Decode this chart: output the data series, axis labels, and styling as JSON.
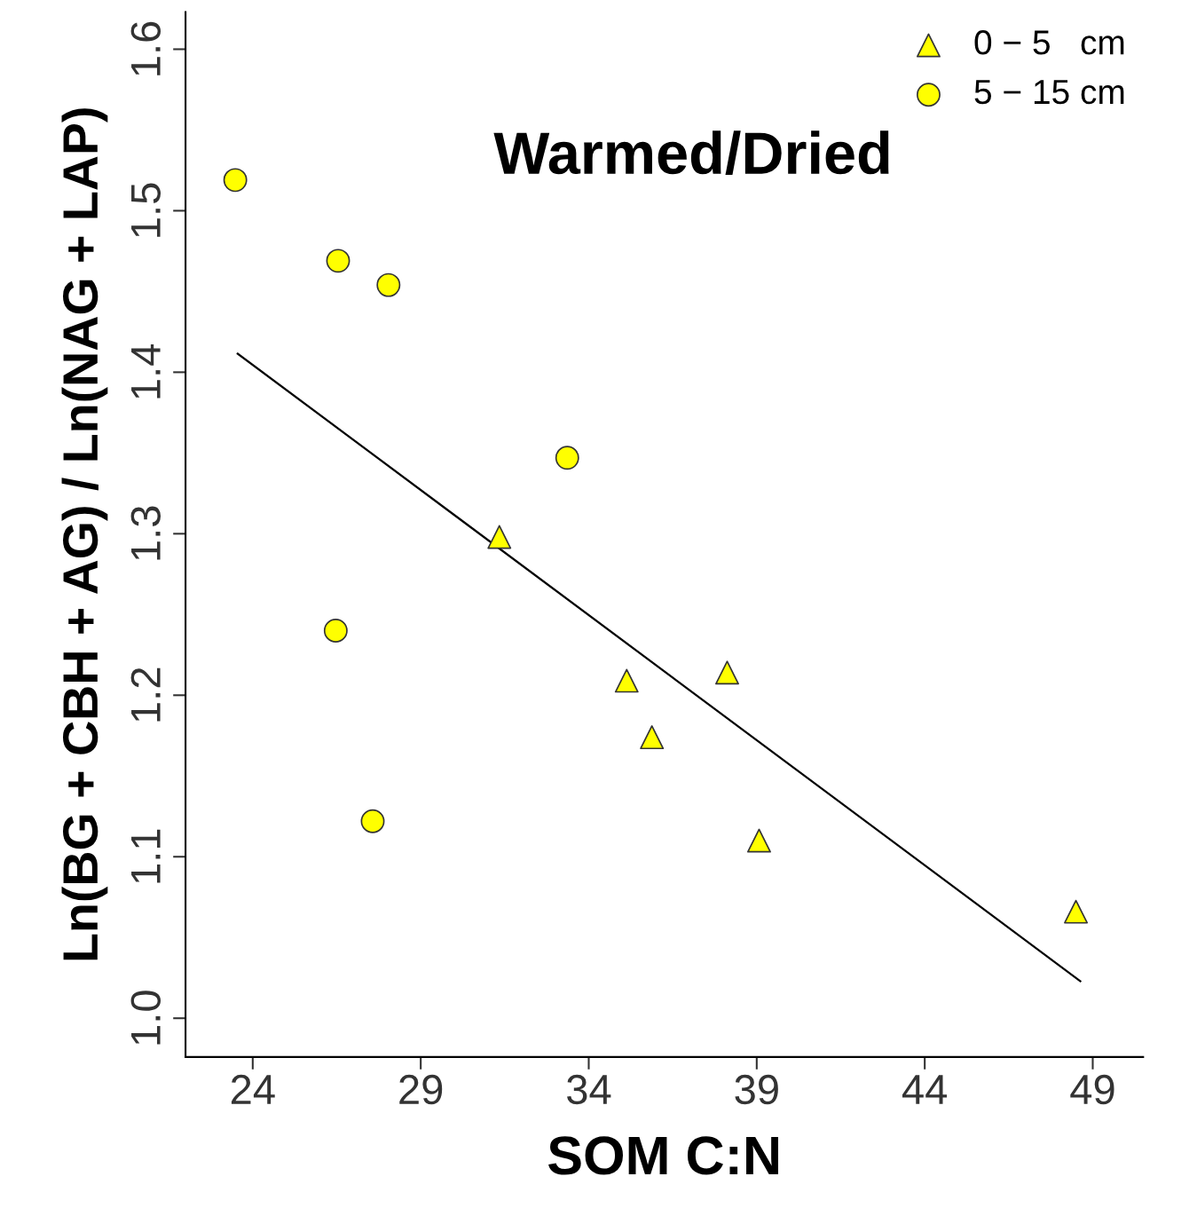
{
  "chart_data": {
    "type": "scatter",
    "xlabel": "SOM C:N",
    "ylabel": "Ln(BG + CBH + AG) / Ln(NAG + LAP)",
    "annotations": [
      "Warmed/Dried"
    ],
    "xlim": [
      22,
      50.5
    ],
    "xticks": [
      24,
      29,
      34,
      39,
      44,
      49
    ],
    "ylim": [
      0.976,
      1.623
    ],
    "yticks": [
      {
        "value": 1.0,
        "label": "1.0"
      },
      1.1,
      1.2,
      1.3,
      1.4,
      1.5,
      1.6
    ],
    "grid": false,
    "legend": "top right",
    "series": [
      {
        "name": "0 − 5   cm",
        "marker": "triangle",
        "color": "#ffff00",
        "x": [
          31.34,
          35.13,
          35.88,
          38.12,
          39.07,
          48.5
        ],
        "values": [
          1.298,
          1.209,
          1.174,
          1.214,
          1.11,
          1.066
        ]
      },
      {
        "name": "5 − 15 cm",
        "marker": "circle",
        "color": "#ffff00",
        "x": [
          23.48,
          26.54,
          28.04,
          33.36,
          26.47,
          27.57
        ],
        "values": [
          1.519,
          1.469,
          1.454,
          1.347,
          1.24,
          1.122
        ]
      },
      {
        "type": "line",
        "color": "#000000",
        "x": [
          23.55,
          48.63
        ],
        "values": [
          1.4115,
          1.023
        ]
      }
    ]
  }
}
